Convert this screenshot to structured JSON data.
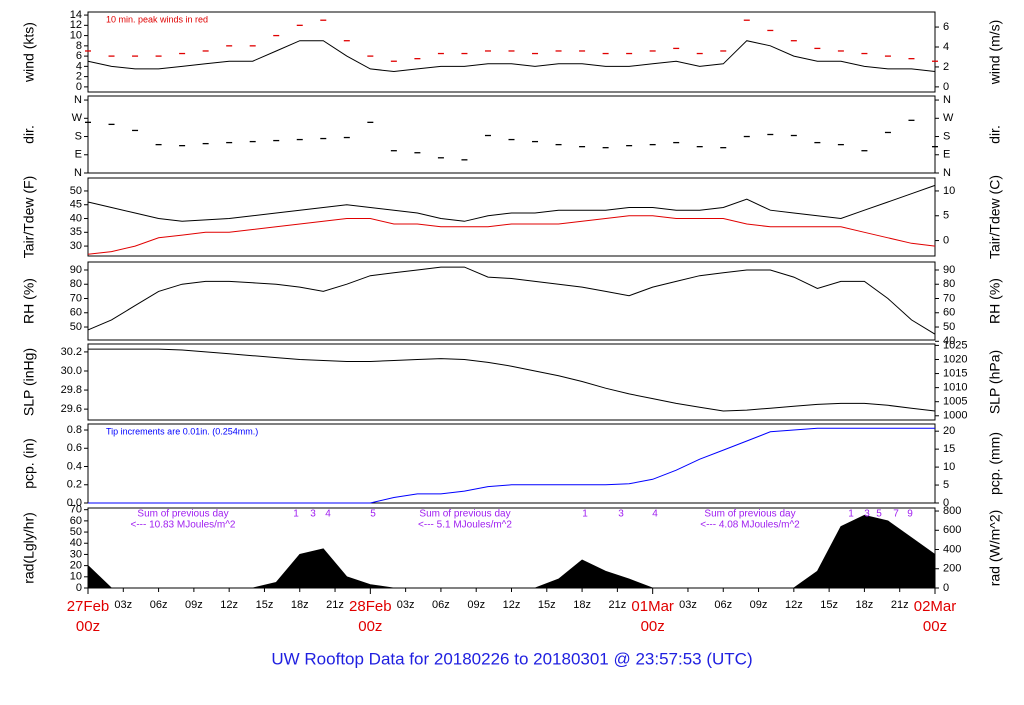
{
  "title": "UW Rooftop Data for 20180226  to  20180301 @ 23:57:53  (UTC)",
  "time_axis": {
    "xlim": [
      0,
      72
    ],
    "x": [
      0,
      2,
      4,
      6,
      8,
      10,
      12,
      14,
      16,
      18,
      20,
      22,
      24,
      26,
      28,
      30,
      32,
      34,
      36,
      38,
      40,
      42,
      44,
      46,
      48,
      50,
      52,
      54,
      56,
      58,
      60,
      62,
      64,
      66,
      68,
      70,
      72
    ],
    "xticks": [
      {
        "value": 3,
        "label": "03z"
      },
      {
        "value": 6,
        "label": "06z"
      },
      {
        "value": 9,
        "label": "09z"
      },
      {
        "value": 12,
        "label": "12z"
      },
      {
        "value": 15,
        "label": "15z"
      },
      {
        "value": 18,
        "label": "18z"
      },
      {
        "value": 21,
        "label": "21z"
      },
      {
        "value": 27,
        "label": "03z"
      },
      {
        "value": 30,
        "label": "06z"
      },
      {
        "value": 33,
        "label": "09z"
      },
      {
        "value": 36,
        "label": "12z"
      },
      {
        "value": 39,
        "label": "15z"
      },
      {
        "value": 42,
        "label": "18z"
      },
      {
        "value": 45,
        "label": "21z"
      },
      {
        "value": 51,
        "label": "03z"
      },
      {
        "value": 54,
        "label": "06z"
      },
      {
        "value": 57,
        "label": "09z"
      },
      {
        "value": 60,
        "label": "12z"
      },
      {
        "value": 63,
        "label": "15z"
      },
      {
        "value": 66,
        "label": "18z"
      },
      {
        "value": 69,
        "label": "21z"
      }
    ],
    "day_ticks": [
      {
        "value": 0,
        "label": "27Feb",
        "hour": "00z"
      },
      {
        "value": 24,
        "label": "28Feb",
        "hour": "00z"
      },
      {
        "value": 48,
        "label": "01Mar",
        "hour": "00z"
      },
      {
        "value": 72,
        "label": "02Mar",
        "hour": "00z"
      }
    ],
    "day_color": "#e00000"
  },
  "chart_data": [
    {
      "type": "line",
      "ylabel": "wind (kts)",
      "y2label": "wind (m/s)",
      "ylim": [
        -1,
        14.6
      ],
      "yticks": [
        0,
        2,
        4,
        6,
        8,
        10,
        12,
        14
      ],
      "y2lim": [
        -0.514,
        7.51
      ],
      "y2ticks": [
        0,
        2,
        4,
        6
      ],
      "annotation": "10 min. peak winds in red",
      "annotation_color": "#e00000",
      "series": [
        {
          "color": "#000000",
          "values": [
            5,
            4,
            3.5,
            3.5,
            4,
            4.5,
            5,
            5,
            7,
            9,
            9,
            6,
            3.5,
            3,
            3.5,
            4,
            4,
            4.5,
            4.5,
            4,
            4.5,
            4.5,
            4,
            4,
            4.5,
            5,
            4,
            4.5,
            9,
            8,
            6,
            5,
            5,
            4,
            3.5,
            3.5,
            3
          ]
        },
        {
          "color": "#e00000",
          "marker": "dash",
          "values": [
            7,
            6,
            6,
            6,
            6.5,
            7,
            8,
            8,
            10,
            12,
            13,
            9,
            6,
            5,
            5.5,
            6.5,
            6.5,
            7,
            7,
            6.5,
            7,
            7,
            6.5,
            6.5,
            7,
            7.5,
            6.5,
            7,
            13,
            11,
            9,
            7.5,
            7,
            6.5,
            6,
            5.5,
            5
          ]
        }
      ]
    },
    {
      "type": "scatter",
      "ylabel": "dir.",
      "y2label": "dir.",
      "ylim": [
        0,
        380
      ],
      "yticks": [
        {
          "value": 0,
          "label": "N"
        },
        {
          "value": 90,
          "label": "E"
        },
        {
          "value": 180,
          "label": "S"
        },
        {
          "value": 270,
          "label": "W"
        },
        {
          "value": 360,
          "label": "N"
        }
      ],
      "y2lim": [
        0,
        380
      ],
      "y2ticks": [
        {
          "value": 0,
          "label": "N"
        },
        {
          "value": 90,
          "label": "E"
        },
        {
          "value": 180,
          "label": "S"
        },
        {
          "value": 270,
          "label": "W"
        },
        {
          "value": 360,
          "label": "N"
        }
      ],
      "series": [
        {
          "color": "#000000",
          "marker": "dash",
          "values": [
            250,
            240,
            210,
            140,
            135,
            145,
            150,
            155,
            160,
            165,
            170,
            175,
            250,
            110,
            100,
            75,
            65,
            185,
            165,
            155,
            140,
            130,
            125,
            135,
            140,
            150,
            130,
            125,
            180,
            190,
            185,
            150,
            140,
            110,
            200,
            260,
            130
          ]
        }
      ]
    },
    {
      "type": "line",
      "ylabel": "Tair/Tdew (F)",
      "y2label": "Tair/Tdew (C)",
      "ylim": [
        26.4,
        54.7
      ],
      "yticks": [
        30,
        35,
        40,
        45,
        50
      ],
      "y2lim": [
        -3.11,
        12.61
      ],
      "y2ticks": [
        0,
        5,
        10
      ],
      "series": [
        {
          "color": "#000000",
          "values": [
            46,
            44,
            42,
            40,
            39,
            39.5,
            40,
            41,
            42,
            43,
            44,
            45,
            44,
            43,
            42,
            40,
            39,
            41,
            42,
            42,
            43,
            43,
            43,
            44,
            44,
            43,
            43,
            44,
            47,
            43,
            42,
            41,
            40,
            43,
            46,
            49,
            52
          ]
        },
        {
          "color": "#e00000",
          "values": [
            27,
            28,
            30,
            33,
            34,
            35,
            35,
            36,
            37,
            38,
            39,
            40,
            40,
            38,
            38,
            37,
            37,
            37,
            38,
            38,
            38,
            39,
            40,
            41,
            41,
            40,
            40,
            40,
            38,
            37,
            37,
            37,
            37,
            35,
            33,
            31,
            30
          ]
        }
      ]
    },
    {
      "type": "line",
      "ylabel": "RH (%)",
      "y2label": "RH (%)",
      "ylim": [
        40.9,
        95.6
      ],
      "yticks": [
        50,
        60,
        70,
        80,
        90
      ],
      "y2lim": [
        40.9,
        95.6
      ],
      "y2ticks": [
        40,
        50,
        60,
        70,
        80,
        90
      ],
      "series": [
        {
          "color": "#000000",
          "values": [
            48,
            55,
            65,
            75,
            80,
            82,
            82,
            81,
            80,
            78,
            75,
            80,
            86,
            88,
            90,
            92,
            92,
            85,
            84,
            82,
            80,
            78,
            75,
            72,
            78,
            82,
            86,
            88,
            90,
            90,
            85,
            77,
            82,
            82,
            70,
            55,
            45
          ]
        }
      ]
    },
    {
      "type": "line",
      "ylabel": "SLP (inHg)",
      "y2label": "SLP (hPa)",
      "ylim": [
        29.486,
        30.283
      ],
      "yticks": [
        29.6,
        29.8,
        {
          "value": 30,
          "label": "30.0"
        },
        30.2
      ],
      "y2lim": [
        998.5,
        1025.5
      ],
      "y2ticks": [
        1000,
        1005,
        1010,
        1015,
        1020,
        1025
      ],
      "series": [
        {
          "color": "#000000",
          "values": [
            30.23,
            30.23,
            30.23,
            30.23,
            30.22,
            30.2,
            30.18,
            30.16,
            30.14,
            30.12,
            30.11,
            30.1,
            30.1,
            30.11,
            30.12,
            30.13,
            30.12,
            30.09,
            30.05,
            30,
            29.95,
            29.89,
            29.82,
            29.76,
            29.71,
            29.66,
            29.62,
            29.58,
            29.59,
            29.61,
            29.63,
            29.65,
            29.66,
            29.66,
            29.64,
            29.61,
            29.58
          ]
        }
      ]
    },
    {
      "type": "line",
      "ylabel": "pcp. (in)",
      "y2label": "pcp. (mm)",
      "ylim": [
        0,
        0.866
      ],
      "yticks": [
        {
          "value": 0,
          "label": "0.0"
        },
        0.2,
        0.4,
        0.6,
        0.8
      ],
      "y2lim": [
        0,
        22
      ],
      "y2ticks": [
        0,
        5,
        10,
        15,
        20
      ],
      "annotation": "Tip increments are 0.01in. (0.254mm.)",
      "annotation_color": "#0000ff",
      "series": [
        {
          "color": "#0000ff",
          "values": [
            0,
            0,
            0,
            0,
            0,
            0,
            0,
            0,
            0,
            0,
            0,
            0,
            0,
            0.06,
            0.1,
            0.1,
            0.13,
            0.18,
            0.2,
            0.2,
            0.2,
            0.2,
            0.2,
            0.21,
            0.26,
            0.36,
            0.48,
            0.58,
            0.68,
            0.78,
            0.8,
            0.82,
            0.82,
            0.82,
            0.82,
            0.82,
            0.82
          ]
        }
      ]
    },
    {
      "type": "area",
      "ylabel": "rad(Lgly/hr)",
      "y2label": "rad (W/m^2)",
      "ylim": [
        0,
        71.5
      ],
      "yticks": [
        0,
        10,
        20,
        30,
        40,
        50,
        60,
        70
      ],
      "y2lim": [
        0,
        831.5
      ],
      "y2ticks": [
        0,
        200,
        400,
        600,
        800
      ],
      "note_color": "#a020f0",
      "notes": [
        [
          "Sum of previous day",
          "<--- 10.83 MJoules/m^2"
        ],
        [
          "Sum of previous day",
          "<--- 5.1 MJoules/m^2"
        ],
        [
          "Sum of previous day",
          "<--- 4.08 MJoules/m^2"
        ]
      ],
      "hour_markers": [
        [
          "1",
          "3",
          "4",
          "5"
        ],
        [
          "1",
          "3",
          "4"
        ],
        [
          "1",
          "3",
          "5",
          "7",
          "9"
        ]
      ],
      "series": [
        {
          "color": "#000000",
          "values": [
            20,
            0,
            0,
            0,
            0,
            0,
            0,
            0,
            5,
            30,
            35,
            10,
            3,
            0,
            0,
            0,
            0,
            0,
            0,
            0,
            8,
            25,
            15,
            8,
            0,
            0,
            0,
            0,
            0,
            0,
            0,
            15,
            55,
            65,
            60,
            45,
            30
          ]
        }
      ]
    }
  ]
}
